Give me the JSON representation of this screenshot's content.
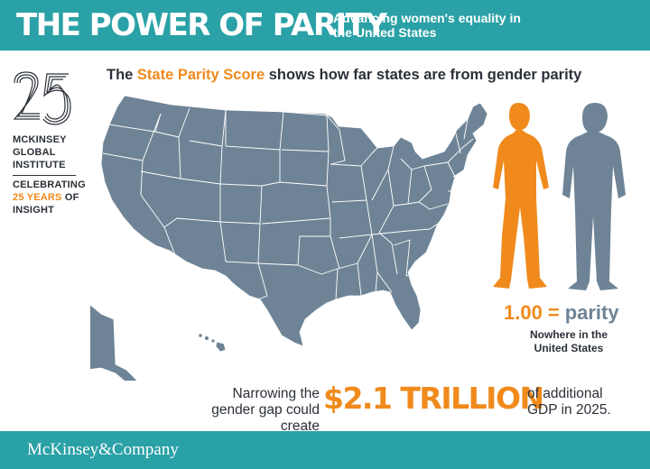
{
  "header": {
    "title": "THE POWER OF PARITY",
    "subtitle": "Advancing women's equality in the United States"
  },
  "headline": {
    "prefix": "The ",
    "highlight": "State Parity Score",
    "suffix": " shows how far states are from gender parity"
  },
  "sidebar": {
    "logo_number": "25",
    "org_line1": "MCKINSEY",
    "org_line2": "GLOBAL",
    "org_line3": "INSTITUTE",
    "celebrate_line1": "CELEBRATING",
    "celebrate_highlight": "25 YEARS",
    "celebrate_of": " OF",
    "celebrate_line3": "INSIGHT"
  },
  "parity": {
    "value": "1.00",
    "equals": "=",
    "word": "parity",
    "caption": "Nowhere in the United States"
  },
  "gdp": {
    "left_text": "Narrowing the gender gap could create",
    "amount": "$2.1 TRILLION",
    "right_text": "of additional GDP in 2025."
  },
  "footer": {
    "brand": "McKinsey&Company"
  },
  "colors": {
    "teal": "#2aa1a6",
    "orange": "#f08a1c",
    "slate": "#6e8496",
    "text": "#2b3038"
  }
}
